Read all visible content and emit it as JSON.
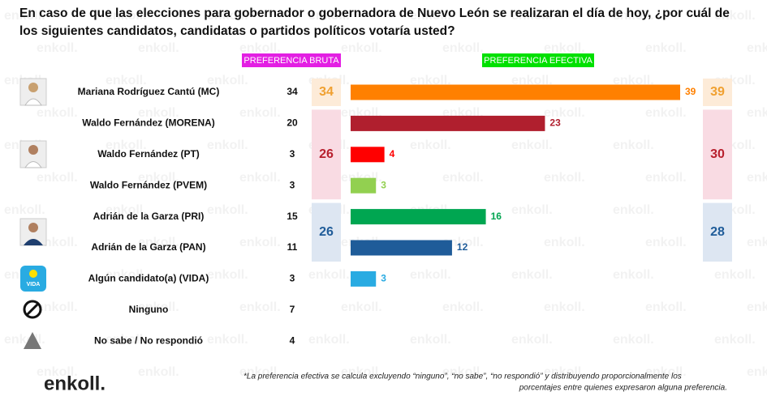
{
  "chart_data": {
    "type": "bar",
    "title": "En caso de que las elecciones para gobernador o gobernadora de Nuevo León se realizaran el día de hoy, ¿por cuál de los siguientes candidatos, candidatas o partidos políticos votaría usted?",
    "raw_header": "PREFERENCIA BRUTA",
    "effective_header": "PREFERENCIA EFECTIVA",
    "categories": [
      "Mariana Rodríguez Cantú (MC)",
      "Waldo Fernández (MORENA)",
      "Waldo Fernández (PT)",
      "Waldo Fernández (PVEM)",
      "Adrián de la Garza (PRI)",
      "Adrián de la Garza (PAN)",
      "Algún candidato(a) (VIDA)",
      "Ninguno",
      "No sabe / No respondió"
    ],
    "raw_values": [
      34,
      20,
      3,
      3,
      15,
      11,
      3,
      7,
      4
    ],
    "values": [
      39,
      23,
      4,
      3,
      16,
      12,
      3,
      null,
      null
    ],
    "colors": [
      "#ff8000",
      "#b01f2e",
      "#ff0000",
      "#92d050",
      "#00a651",
      "#1f5c99",
      "#29abe2",
      null,
      null
    ],
    "xlim": [
      0,
      39
    ],
    "groups": [
      {
        "raw": 34,
        "effective": 39,
        "first": 0,
        "last": 0,
        "color": "#f0a030",
        "background": "#fdebd8"
      },
      {
        "raw": 26,
        "effective": 30,
        "first": 1,
        "last": 3,
        "color": "#b8202e",
        "background": "#f9dbe3"
      },
      {
        "raw": 26,
        "effective": 28,
        "first": 4,
        "last": 5,
        "color": "#1f5c99",
        "background": "#dde6f2"
      }
    ],
    "icon_text": "VIDA",
    "footnote": [
      "*La preferencia efectiva se calcula excluyendo “ninguno”, “no sabe”, “no respondió” y distribuyendo proporcionalmente los",
      "porcentajes entre quienes expresaron alguna preferencia."
    ],
    "logo": "enkoll.",
    "watermark": "enkoll."
  }
}
